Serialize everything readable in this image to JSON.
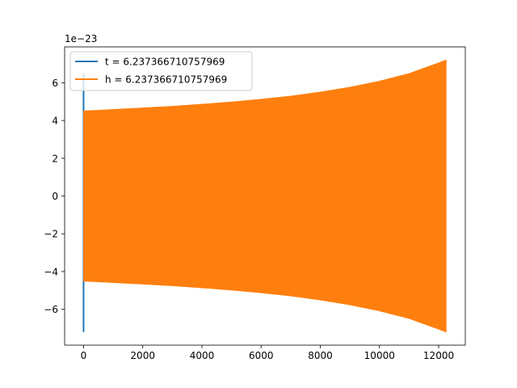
{
  "chart_data": {
    "type": "line",
    "title": "",
    "xlabel": "",
    "ylabel": "",
    "y_scale_label": "1e−23",
    "xlim": [
      -640,
      12900
    ],
    "ylim": [
      -7.9,
      7.9
    ],
    "x_ticks": [
      0,
      2000,
      4000,
      6000,
      8000,
      10000,
      12000
    ],
    "x_tick_labels": [
      "0",
      "2000",
      "4000",
      "6000",
      "8000",
      "10000",
      "12000"
    ],
    "y_ticks": [
      -6,
      -4,
      -2,
      0,
      2,
      4,
      6
    ],
    "y_tick_labels": [
      "−6",
      "−4",
      "−2",
      "0",
      "2",
      "4",
      "6"
    ],
    "grid": false,
    "legend_position": "top-left",
    "series": [
      {
        "name": "t = 6.237366710757969",
        "color": "#1f77b4",
        "style": "vertical spike near x = 0",
        "x": [
          0,
          0
        ],
        "y": [
          -7.2,
          6.5
        ]
      },
      {
        "name": "h = 6.237366710757969",
        "color": "#ff7f0e",
        "style": "oscillation envelope (filled)",
        "x": [
          0,
          1000,
          2000,
          3000,
          4000,
          5000,
          6000,
          7000,
          8000,
          9000,
          10000,
          11000,
          12000,
          12250
        ],
        "y_upper": [
          4.5,
          4.58,
          4.66,
          4.75,
          4.86,
          4.98,
          5.12,
          5.29,
          5.5,
          5.76,
          6.08,
          6.48,
          7.05,
          7.2
        ],
        "y_lower": [
          -4.5,
          -4.58,
          -4.66,
          -4.75,
          -4.86,
          -4.98,
          -5.12,
          -5.29,
          -5.5,
          -5.76,
          -6.08,
          -6.48,
          -7.05,
          -7.2
        ]
      }
    ]
  }
}
